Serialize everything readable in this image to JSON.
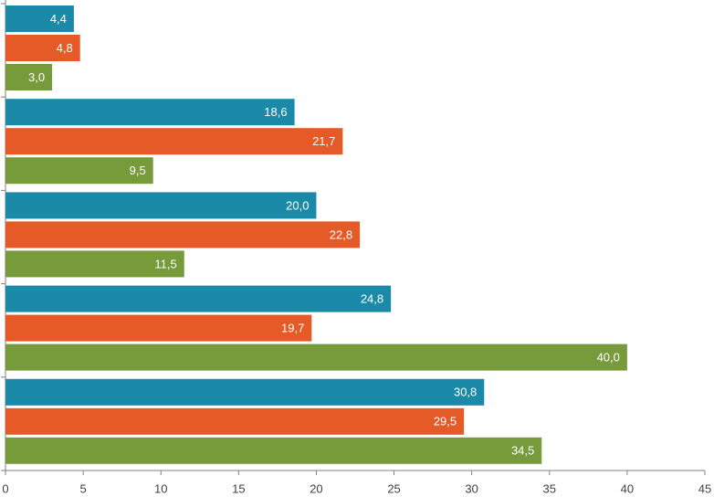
{
  "chart_data": {
    "type": "bar",
    "orientation": "horizontal",
    "categories": [
      null,
      null,
      null,
      null,
      null
    ],
    "series": [
      {
        "color": "#1b8aa8",
        "values": [
          4.4,
          18.6,
          20.0,
          24.8,
          30.8
        ],
        "value_labels": [
          "4,4",
          "18,6",
          "20,0",
          "24,8",
          "30,8"
        ]
      },
      {
        "color": "#e55a27",
        "values": [
          4.8,
          21.7,
          22.8,
          19.7,
          29.5
        ],
        "value_labels": [
          "4,8",
          "21,7",
          "22,8",
          "19,7",
          "29,5"
        ]
      },
      {
        "color": "#779a3b",
        "values": [
          3.0,
          9.5,
          11.5,
          40.0,
          34.5
        ],
        "value_labels": [
          "3,0",
          "9,5",
          "11,5",
          "40,0",
          "34,5"
        ]
      }
    ],
    "xlim": [
      0,
      45
    ],
    "xticks": [
      0,
      5,
      10,
      15,
      20,
      25,
      30,
      35,
      40,
      45
    ],
    "grid": false
  }
}
